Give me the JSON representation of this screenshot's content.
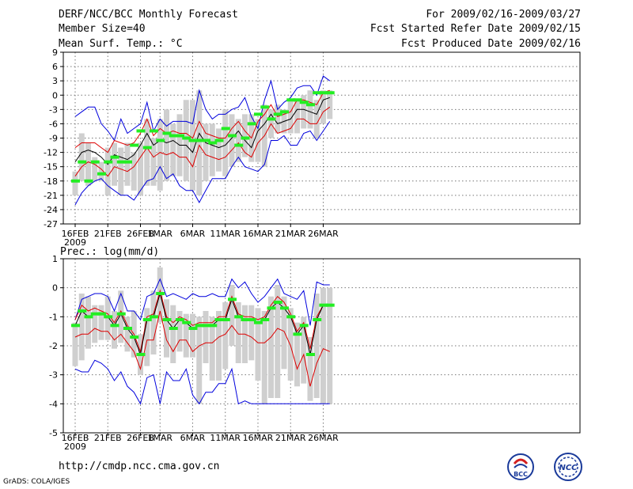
{
  "header": {
    "title": "DERF/NCC/BCC Monthly Forecast",
    "member": "Member Size=40",
    "variable": "Mean Surf. Temp.: °C",
    "period": "For 2009/02/16-2009/03/27",
    "started": "Fcst Started Refer Date 2009/02/15",
    "produced": "Fcst Produced Date 2009/02/16"
  },
  "footer": {
    "url": "http://cmdp.ncc.cma.gov.cn",
    "grads": "GrADS: COLA/IGES",
    "logo_left": "BCC",
    "logo_right": "NCC"
  },
  "chart_data": [
    {
      "type": "line",
      "title": "Mean Surf. Temp.: °C",
      "ylim": [
        -27,
        9
      ],
      "yticks": [
        9,
        6,
        3,
        0,
        -3,
        -6,
        -9,
        -12,
        -15,
        -18,
        -21,
        -24,
        -27
      ],
      "x_labels": [
        "16FEB",
        "21FEB",
        "26FEB",
        "1MAR",
        "6MAR",
        "11MAR",
        "16MAR",
        "21MAR",
        "26MAR"
      ],
      "x_year": "2009",
      "series": [
        {
          "name": "ensemble max",
          "color": "#0000dd",
          "values": [
            -4.5,
            -3.5,
            -2.5,
            -2.5,
            -6,
            -7.5,
            -9.5,
            -5,
            -8,
            -7,
            -6,
            -1.5,
            -7.5,
            -5,
            -6.5,
            -5.5,
            -5.5,
            -5.5,
            -6,
            1,
            -3,
            -5,
            -4,
            -4,
            -3,
            -2.5,
            -0.5,
            -4.5,
            -7,
            -1,
            3,
            -3,
            -1.5,
            -0.5,
            1.5,
            2,
            2,
            0,
            4,
            3
          ]
        },
        {
          "name": "upper percentile",
          "color": "#dd0000",
          "values": [
            -11,
            -10,
            -10,
            -10,
            -11,
            -12,
            -9.5,
            -10,
            -10.5,
            -10,
            -8,
            -5,
            -8.5,
            -7,
            -8,
            -7.5,
            -8,
            -8,
            -9,
            -5.5,
            -8,
            -8.5,
            -9,
            -9,
            -7,
            -5.5,
            -7.5,
            -9,
            -5.5,
            -4,
            -2,
            -4.5,
            -4,
            -3.5,
            -1,
            -1,
            -1.5,
            -2,
            0.5,
            1
          ]
        },
        {
          "name": "ensemble mean",
          "color": "#000000",
          "values": [
            -14,
            -12,
            -11.5,
            -12,
            -13,
            -14.5,
            -12.5,
            -13,
            -13.5,
            -12.5,
            -10.5,
            -8,
            -10.5,
            -9.5,
            -10,
            -9.5,
            -10.5,
            -10.5,
            -12,
            -8,
            -10,
            -10.5,
            -11,
            -10.5,
            -9,
            -7.5,
            -9.5,
            -11,
            -7.5,
            -6,
            -4,
            -6,
            -5.5,
            -5,
            -3,
            -3,
            -3.5,
            -4,
            -1,
            -0.5
          ]
        },
        {
          "name": "lower percentile",
          "color": "#dd0000",
          "values": [
            -17,
            -15,
            -14,
            -14.5,
            -15.5,
            -17,
            -15,
            -15.5,
            -16,
            -15,
            -13,
            -11,
            -13,
            -12,
            -12.5,
            -12,
            -13,
            -13,
            -15,
            -10.5,
            -12.5,
            -13,
            -13.5,
            -13,
            -11.5,
            -10,
            -12,
            -13,
            -10,
            -8.5,
            -6,
            -8,
            -7.5,
            -7,
            -5,
            -5,
            -6,
            -6,
            -3.5,
            -2.5
          ]
        },
        {
          "name": "ensemble min",
          "color": "#0000dd",
          "values": [
            -23,
            -20.5,
            -19,
            -18,
            -17.5,
            -19,
            -20,
            -21,
            -21,
            -22,
            -20,
            -18,
            -17.5,
            -15,
            -17.5,
            -16.5,
            -19,
            -20,
            -20,
            -22.5,
            -20,
            -17.5,
            -17.5,
            -17.5,
            -15,
            -13,
            -15,
            -15.5,
            -16,
            -14.5,
            -9.5,
            -9.5,
            -8.5,
            -10.5,
            -10.5,
            -8,
            -7.5,
            -9.5,
            -7.5,
            -5.5
          ]
        }
      ],
      "bars_low": [
        -21,
        -18,
        -19,
        -18,
        -18,
        -21,
        -19,
        -21,
        -19,
        -20,
        -21,
        -19,
        -19,
        -20,
        -18,
        -17,
        -17,
        -18,
        -20,
        -21,
        -18,
        -17,
        -16,
        -17,
        -15,
        -14,
        -13,
        -14,
        -14,
        -15,
        -9,
        -8,
        -8,
        -8,
        -8,
        -7,
        -7,
        -9,
        -6,
        -5
      ],
      "bars_high": [
        -16,
        -8,
        -10,
        -13,
        -14,
        -11,
        -10,
        -11,
        -10,
        -12,
        -10,
        -5,
        -9,
        -5,
        -3,
        -6,
        -4,
        -1,
        -1,
        1,
        -6,
        -6,
        -7,
        -3,
        -4,
        -5,
        -4,
        -4,
        -5,
        -2,
        -3,
        -2,
        -3,
        -1,
        -1,
        0,
        1,
        -1,
        1,
        1
      ],
      "markers": [
        -18,
        -14,
        -18,
        -14,
        -16.5,
        -14,
        -13,
        -14,
        -14,
        -10.5,
        -7.5,
        -11,
        -7.5,
        -9.5,
        -8,
        -8.5,
        -8.5,
        -9,
        -9.5,
        -9.5,
        -9.5,
        -10,
        -9.5,
        -7,
        -8.5,
        -10.5,
        -9,
        -6,
        -4,
        -2.5,
        -5,
        -4,
        -3.5,
        -1,
        -1,
        -1.5,
        -2,
        0.5,
        0.5,
        0.5
      ]
    },
    {
      "type": "line",
      "title": "Prec.: log(mm/d)",
      "ylim": [
        -5,
        1
      ],
      "yticks": [
        1,
        0,
        -1,
        -2,
        -3,
        -4,
        -5
      ],
      "x_labels": [
        "16FEB",
        "21FEB",
        "26FEB",
        "1MAR",
        "6MAR",
        "11MAR",
        "16MAR",
        "21MAR",
        "26MAR"
      ],
      "x_year": "2009",
      "series": [
        {
          "name": "ensemble max",
          "color": "#0000dd",
          "values": [
            -1.1,
            -0.4,
            -0.3,
            -0.2,
            -0.2,
            -0.3,
            -0.8,
            -0.2,
            -0.8,
            -0.8,
            -1.1,
            -0.3,
            -0.2,
            0.3,
            -0.3,
            -0.2,
            -0.3,
            -0.4,
            -0.2,
            -0.3,
            -0.3,
            -0.2,
            -0.3,
            -0.3,
            0.3,
            0,
            0.2,
            -0.2,
            -0.5,
            -0.3,
            0,
            0.3,
            -0.2,
            -0.3,
            -0.4,
            -0.1,
            -1.3,
            0.2,
            0.1,
            0.1
          ]
        },
        {
          "name": "upper percentile",
          "color": "#dd0000",
          "values": [
            -1.1,
            -0.6,
            -0.8,
            -0.7,
            -0.8,
            -0.9,
            -1.2,
            -0.8,
            -1.3,
            -1.6,
            -2.2,
            -1,
            -0.9,
            -0.1,
            -1,
            -1.2,
            -1,
            -1.1,
            -1.3,
            -1.2,
            -1.2,
            -1.2,
            -1,
            -1,
            -0.3,
            -0.9,
            -1,
            -1,
            -1.1,
            -1,
            -0.6,
            -0.3,
            -0.5,
            -0.9,
            -1.5,
            -1.2,
            -2.1,
            -1,
            -0.6,
            -0.6
          ]
        },
        {
          "name": "ensemble mean",
          "color": "#000000",
          "values": [
            -1.3,
            -0.8,
            -1,
            -0.9,
            -0.9,
            -1,
            -1.3,
            -0.9,
            -1.4,
            -1.7,
            -2.3,
            -1.1,
            -1,
            -0.2,
            -1.1,
            -1.4,
            -1.1,
            -1.2,
            -1.4,
            -1.3,
            -1.3,
            -1.3,
            -1.1,
            -1.1,
            -0.4,
            -1,
            -1.1,
            -1.1,
            -1.2,
            -1.1,
            -0.7,
            -0.5,
            -0.7,
            -1,
            -1.6,
            -1.3,
            -2.3,
            -1.1,
            -0.6,
            -0.6
          ]
        },
        {
          "name": "lower percentile",
          "color": "#dd0000",
          "values": [
            -1.7,
            -1.6,
            -1.6,
            -1.4,
            -1.5,
            -1.5,
            -1.8,
            -1.6,
            -1.9,
            -2.2,
            -2.8,
            -1.8,
            -1.8,
            -0.8,
            -1.8,
            -2.2,
            -1.8,
            -1.8,
            -2.2,
            -2,
            -1.9,
            -1.9,
            -1.7,
            -1.6,
            -1.3,
            -1.6,
            -1.6,
            -1.7,
            -1.9,
            -1.9,
            -1.7,
            -1.4,
            -1.5,
            -2,
            -2.8,
            -2.3,
            -3.4,
            -2.6,
            -2.1,
            -2.2
          ]
        },
        {
          "name": "ensemble min",
          "color": "#0000dd",
          "values": [
            -2.8,
            -2.9,
            -2.9,
            -2.5,
            -2.6,
            -2.8,
            -3.2,
            -2.9,
            -3.4,
            -3.6,
            -4,
            -3.1,
            -3,
            -4,
            -2.9,
            -3.2,
            -3.2,
            -2.8,
            -3.7,
            -4,
            -3.6,
            -3.6,
            -3.3,
            -3.3,
            -2.8,
            -4,
            -3.9,
            -4,
            -4,
            -4,
            -4,
            -4,
            -4,
            -4,
            -4,
            -4,
            -4,
            -4,
            -4,
            -4
          ]
        }
      ],
      "bars_low": [
        -2.7,
        -2.5,
        -2.1,
        -1.9,
        -1.8,
        -1.8,
        -2.1,
        -1.9,
        -2.2,
        -2.4,
        -3,
        -2.7,
        -2.3,
        -1.2,
        -2.4,
        -2.6,
        -2.2,
        -2.4,
        -2.4,
        -4,
        -2.6,
        -3.2,
        -3.2,
        -2.8,
        -2,
        -2.6,
        -2.6,
        -2.5,
        -3.2,
        -4,
        -3.8,
        -3.8,
        -2.8,
        -3.2,
        -3.4,
        -3.3,
        -3.9,
        -3.8,
        -4,
        -4
      ],
      "bars_high": [
        -1.2,
        -0.2,
        -0.3,
        -0.6,
        -0.6,
        -0.3,
        -0.8,
        -0.1,
        -1,
        -0.8,
        -1.6,
        -0.7,
        -0.1,
        0.7,
        -0.4,
        -0.6,
        -0.8,
        -0.9,
        -0.9,
        -1,
        -0.8,
        -1,
        -0.8,
        -0.5,
        0.1,
        -0.5,
        -0.6,
        -0.6,
        -0.7,
        -0.8,
        -0.3,
        0.1,
        -0.3,
        -0.7,
        -1.2,
        -1,
        -1.7,
        -0.2,
        0,
        0
      ]
    }
  ]
}
